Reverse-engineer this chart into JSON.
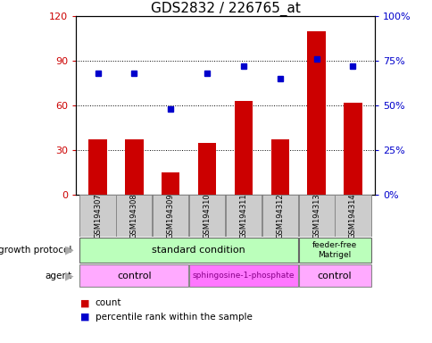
{
  "title": "GDS2832 / 226765_at",
  "samples": [
    "GSM194307",
    "GSM194308",
    "GSM194309",
    "GSM194310",
    "GSM194311",
    "GSM194312",
    "GSM194313",
    "GSM194314"
  ],
  "counts": [
    37,
    37,
    15,
    35,
    63,
    37,
    110,
    62
  ],
  "percentiles": [
    68,
    68,
    48,
    68,
    72,
    65,
    76,
    72
  ],
  "ylim_left": [
    0,
    120
  ],
  "ylim_right": [
    0,
    100
  ],
  "yticks_left": [
    0,
    30,
    60,
    90,
    120
  ],
  "yticks_right": [
    0,
    25,
    50,
    75,
    100
  ],
  "ytick_labels_left": [
    "0",
    "30",
    "60",
    "90",
    "120"
  ],
  "ytick_labels_right": [
    "0%",
    "25%",
    "50%",
    "75%",
    "100%"
  ],
  "bar_color": "#cc0000",
  "dot_color": "#0000cc",
  "bar_width": 0.5,
  "legend_count_label": "count",
  "legend_percentile_label": "percentile rank within the sample",
  "growth_protocol_label": "growth protocol",
  "agent_label": "agent",
  "gp_color": "#bbffbb",
  "agent_light_color": "#ffaaff",
  "agent_dark_color": "#ff77ff",
  "sample_bg_color": "#cccccc",
  "background_color": "#ffffff",
  "figsize": [
    4.85,
    3.84
  ],
  "dpi": 100
}
